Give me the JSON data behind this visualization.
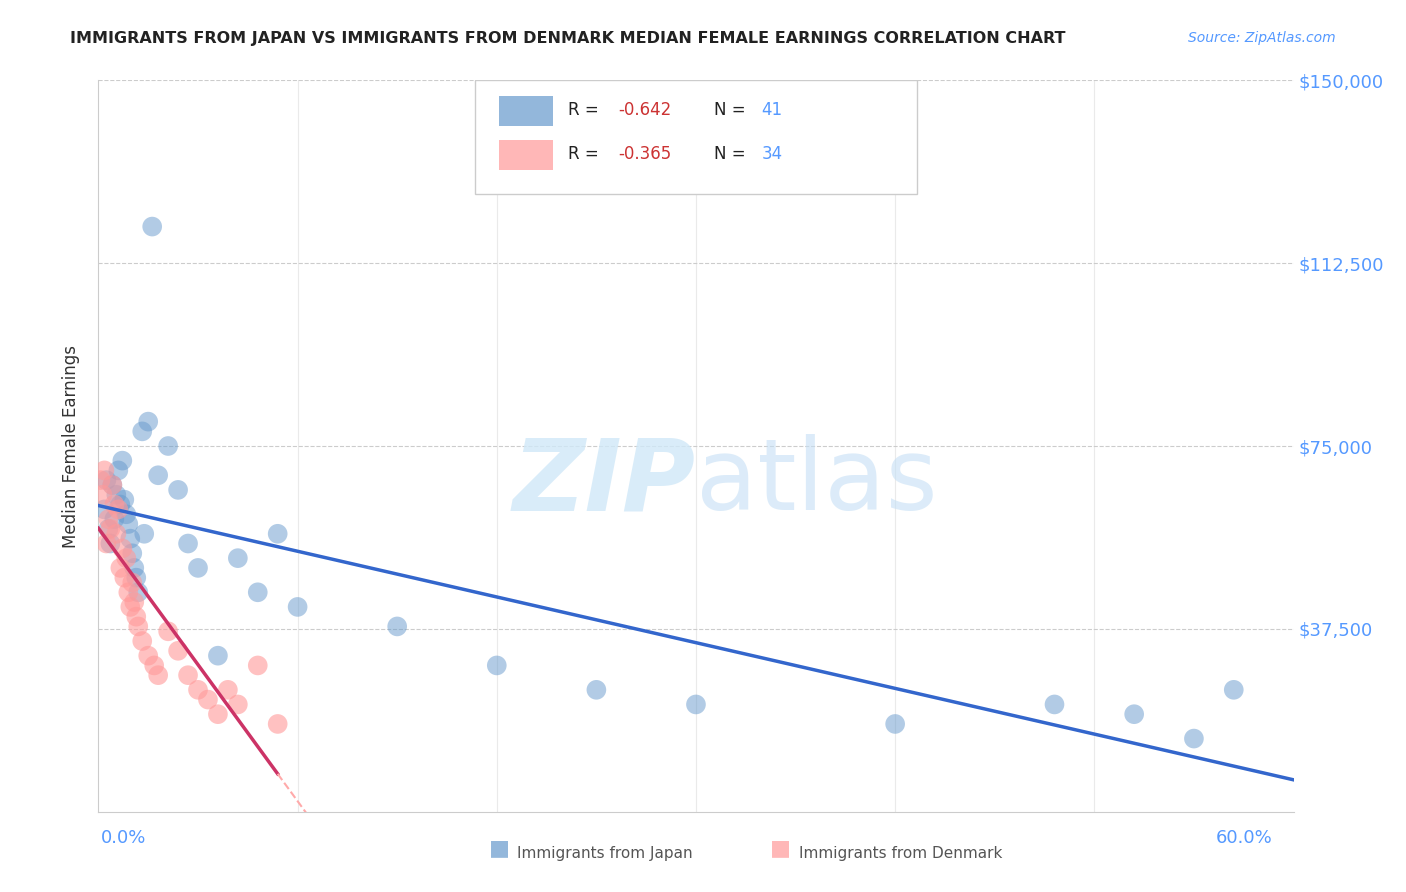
{
  "title": "IMMIGRANTS FROM JAPAN VS IMMIGRANTS FROM DENMARK MEDIAN FEMALE EARNINGS CORRELATION CHART",
  "source": "Source: ZipAtlas.com",
  "ylabel": "Median Female Earnings",
  "xlim": [
    0.0,
    0.6
  ],
  "ylim": [
    0,
    150000
  ],
  "yticks": [
    0,
    37500,
    75000,
    112500,
    150000
  ],
  "ytick_labels": [
    "",
    "$37,500",
    "$75,000",
    "$112,500",
    "$150,000"
  ],
  "background_color": "#ffffff",
  "japan_color": "#6699cc",
  "denmark_color": "#ff9999",
  "japan_line_color": "#3366cc",
  "denmark_line_color": "#cc3366",
  "denmark_line_dashed_color": "#ffaaaa",
  "R_japan": -0.642,
  "N_japan": 41,
  "R_denmark": -0.365,
  "N_denmark": 34,
  "japan_x": [
    0.003,
    0.005,
    0.006,
    0.007,
    0.008,
    0.009,
    0.01,
    0.011,
    0.012,
    0.013,
    0.014,
    0.015,
    0.016,
    0.017,
    0.018,
    0.019,
    0.02,
    0.022,
    0.025,
    0.027,
    0.03,
    0.035,
    0.04,
    0.045,
    0.05,
    0.06,
    0.07,
    0.08,
    0.09,
    0.1,
    0.15,
    0.2,
    0.25,
    0.3,
    0.4,
    0.48,
    0.52,
    0.55,
    0.57,
    0.004,
    0.023
  ],
  "japan_y": [
    62000,
    58000,
    55000,
    67000,
    60000,
    65000,
    70000,
    63000,
    72000,
    64000,
    61000,
    59000,
    56000,
    53000,
    50000,
    48000,
    45000,
    78000,
    80000,
    120000,
    69000,
    75000,
    66000,
    55000,
    50000,
    32000,
    52000,
    45000,
    57000,
    42000,
    38000,
    30000,
    25000,
    22000,
    18000,
    22000,
    20000,
    15000,
    25000,
    68000,
    57000
  ],
  "denmark_x": [
    0.001,
    0.002,
    0.003,
    0.004,
    0.005,
    0.006,
    0.007,
    0.008,
    0.009,
    0.01,
    0.011,
    0.012,
    0.013,
    0.014,
    0.015,
    0.016,
    0.017,
    0.018,
    0.019,
    0.02,
    0.022,
    0.025,
    0.028,
    0.03,
    0.035,
    0.04,
    0.045,
    0.05,
    0.055,
    0.06,
    0.065,
    0.07,
    0.08,
    0.09
  ],
  "denmark_y": [
    68000,
    65000,
    70000,
    55000,
    60000,
    58000,
    67000,
    63000,
    57000,
    62000,
    50000,
    54000,
    48000,
    52000,
    45000,
    42000,
    47000,
    43000,
    40000,
    38000,
    35000,
    32000,
    30000,
    28000,
    37000,
    33000,
    28000,
    25000,
    23000,
    20000,
    25000,
    22000,
    30000,
    18000
  ]
}
